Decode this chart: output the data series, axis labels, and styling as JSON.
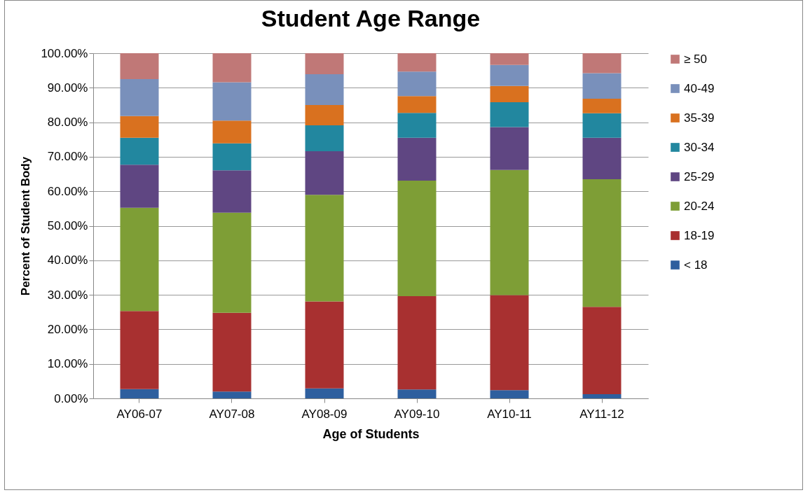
{
  "chart_data": {
    "type": "bar",
    "title": "Student Age Range",
    "xlabel": "Age of Students",
    "ylabel": "Percent of Student Body",
    "categories": [
      "AY06-07",
      "AY07-08",
      "AY08-09",
      "AY09-10",
      "AY10-11",
      "AY11-12"
    ],
    "stacked": true,
    "legend": "right",
    "grid": "y",
    "ylim": [
      0,
      100
    ],
    "yticks": [
      {
        "value": 0,
        "label": "0.00%"
      },
      {
        "value": 10,
        "label": "10.00%"
      },
      {
        "value": 20,
        "label": "20.00%"
      },
      {
        "value": 30,
        "label": "30.00%"
      },
      {
        "value": 40,
        "label": "40.00%"
      },
      {
        "value": 50,
        "label": "50.00%"
      },
      {
        "value": 60,
        "label": "60.00%"
      },
      {
        "value": 70,
        "label": "70.00%"
      },
      {
        "value": 80,
        "label": "80.00%"
      },
      {
        "value": 90,
        "label": "90.00%"
      },
      {
        "value": 100,
        "label": "100.00%"
      }
    ],
    "series": [
      {
        "name": "< 18",
        "color": "#2e5f9e",
        "values": [
          2.7,
          2.0,
          2.9,
          2.6,
          2.4,
          1.2
        ]
      },
      {
        "name": "18-19",
        "color": "#a83030",
        "values": [
          22.6,
          22.8,
          25.2,
          27.0,
          27.5,
          25.3
        ]
      },
      {
        "name": "20-24",
        "color": "#7e9e36",
        "values": [
          29.9,
          29.0,
          30.9,
          33.5,
          36.3,
          37.0
        ]
      },
      {
        "name": "25-29",
        "color": "#5f4682",
        "values": [
          12.5,
          12.3,
          12.6,
          12.4,
          12.4,
          12.0
        ]
      },
      {
        "name": "30-34",
        "color": "#22879f",
        "values": [
          7.8,
          7.8,
          7.5,
          7.2,
          7.2,
          7.1
        ]
      },
      {
        "name": "35-39",
        "color": "#d9711f",
        "values": [
          6.3,
          6.6,
          5.9,
          4.9,
          4.7,
          4.2
        ]
      },
      {
        "name": "40-49",
        "color": "#7990bb",
        "values": [
          10.7,
          11.1,
          8.9,
          7.1,
          6.1,
          7.4
        ]
      },
      {
        "name": "≥ 50",
        "color": "#c07877",
        "values": [
          7.5,
          8.4,
          6.1,
          5.3,
          3.4,
          5.8
        ]
      }
    ]
  }
}
